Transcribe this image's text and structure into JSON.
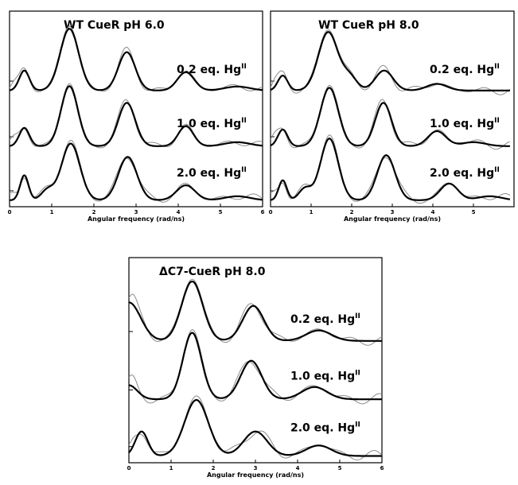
{
  "chart_data": [
    {
      "type": "line",
      "title": "WT CueR pH 6.0",
      "xlabel": "Angular frequency (rad/ns)",
      "ylabel": "",
      "xlim": [
        0,
        6
      ],
      "xticks": [
        "0",
        "1",
        "2",
        "3",
        "4",
        "5",
        "6"
      ],
      "grid": false,
      "traces": [
        {
          "label": "0.2 eq. Hg",
          "label_sup": "II",
          "offset": 2,
          "fit": {
            "base": 0.05,
            "peaks": [
              [
                0.35,
                0.6,
                0.12
              ],
              [
                1.42,
                1.85,
                0.22
              ],
              [
                2.78,
                1.15,
                0.2
              ],
              [
                4.18,
                0.55,
                0.2
              ],
              [
                5.4,
                0.12,
                0.3
              ]
            ]
          },
          "exp": {
            "osc": 0.1
          }
        },
        {
          "label": "1.0 eq. Hg",
          "label_sup": "II",
          "offset": 1,
          "fit": {
            "base": 0.05,
            "peaks": [
              [
                0.35,
                0.55,
                0.12
              ],
              [
                1.42,
                1.8,
                0.2
              ],
              [
                2.78,
                1.3,
                0.2
              ],
              [
                4.18,
                0.6,
                0.18
              ],
              [
                5.4,
                0.12,
                0.3
              ]
            ]
          },
          "exp": {
            "osc": 0.12
          }
        },
        {
          "label": "2.0 eq. Hg",
          "label_sup": "II",
          "offset": 0,
          "fit": {
            "base": 0.05,
            "peaks": [
              [
                0.35,
                0.75,
                0.1
              ],
              [
                0.9,
                0.3,
                0.15
              ],
              [
                1.45,
                1.7,
                0.22
              ],
              [
                2.8,
                1.3,
                0.22
              ],
              [
                4.18,
                0.45,
                0.22
              ],
              [
                5.4,
                0.12,
                0.3
              ]
            ]
          },
          "exp": {
            "osc": 0.14
          }
        }
      ]
    },
    {
      "type": "line",
      "title": "WT CueR pH 8.0",
      "xlabel": "Angular frequency (rad/ns)",
      "ylabel": "",
      "xlim": [
        0,
        6
      ],
      "xticks": [
        "0",
        "1",
        "2",
        "3",
        "4",
        "5"
      ],
      "grid": false,
      "traces": [
        {
          "label": "0.2 eq. Hg",
          "label_sup": "II",
          "offset": 2,
          "fit": {
            "base": 0.05,
            "peaks": [
              [
                0.3,
                0.45,
                0.12
              ],
              [
                1.42,
                1.75,
                0.24
              ],
              [
                1.95,
                0.4,
                0.18
              ],
              [
                2.8,
                0.6,
                0.22
              ],
              [
                4.1,
                0.2,
                0.25
              ]
            ]
          },
          "exp": {
            "osc": 0.14
          }
        },
        {
          "label": "1.0 eq. Hg",
          "label_sup": "II",
          "offset": 1,
          "fit": {
            "base": 0.05,
            "peaks": [
              [
                0.3,
                0.5,
                0.12
              ],
              [
                1.45,
                1.75,
                0.22
              ],
              [
                2.78,
                1.3,
                0.2
              ],
              [
                4.1,
                0.45,
                0.22
              ],
              [
                5.0,
                0.12,
                0.3
              ]
            ]
          },
          "exp": {
            "osc": 0.14
          }
        },
        {
          "label": "2.0 eq. Hg",
          "label_sup": "II",
          "offset": 0,
          "fit": {
            "base": 0.05,
            "peaks": [
              [
                0.3,
                0.6,
                0.1
              ],
              [
                0.85,
                0.35,
                0.15
              ],
              [
                1.45,
                1.85,
                0.22
              ],
              [
                2.85,
                1.35,
                0.22
              ],
              [
                4.4,
                0.5,
                0.22
              ],
              [
                5.4,
                0.12,
                0.3
              ]
            ]
          },
          "exp": {
            "osc": 0.15
          }
        }
      ]
    },
    {
      "type": "line",
      "title": "ΔC7-CueR pH 8.0",
      "xlabel": "Angular frequency (rad/ns)",
      "ylabel": "",
      "xlim": [
        0,
        6
      ],
      "xticks": [
        "0",
        "1",
        "2",
        "3",
        "4",
        "5",
        "6"
      ],
      "grid": false,
      "traces": [
        {
          "label": "0.2 eq. Hg",
          "label_sup": "II",
          "offset": 2,
          "fit": {
            "base": 0.05,
            "peaks": [
              [
                0.0,
                1.1,
                0.28
              ],
              [
                1.5,
                1.7,
                0.25
              ],
              [
                2.95,
                1.0,
                0.25
              ],
              [
                4.5,
                0.3,
                0.3
              ]
            ]
          },
          "exp": {
            "osc": 0.14
          }
        },
        {
          "label": "1.0 eq. Hg",
          "label_sup": "II",
          "offset": 1,
          "fit": {
            "base": 0.05,
            "peaks": [
              [
                0.0,
                0.4,
                0.2
              ],
              [
                1.5,
                1.9,
                0.22
              ],
              [
                2.9,
                1.1,
                0.25
              ],
              [
                4.4,
                0.35,
                0.3
              ]
            ]
          },
          "exp": {
            "osc": 0.16
          }
        },
        {
          "label": "2.0 eq. Hg",
          "label_sup": "II",
          "offset": 0,
          "fit": {
            "base": 0.05,
            "peaks": [
              [
                0.3,
                0.7,
                0.15
              ],
              [
                1.6,
                1.6,
                0.28
              ],
              [
                3.0,
                0.7,
                0.28
              ],
              [
                4.5,
                0.3,
                0.3
              ]
            ]
          },
          "exp": {
            "osc": 0.16
          }
        }
      ]
    }
  ]
}
